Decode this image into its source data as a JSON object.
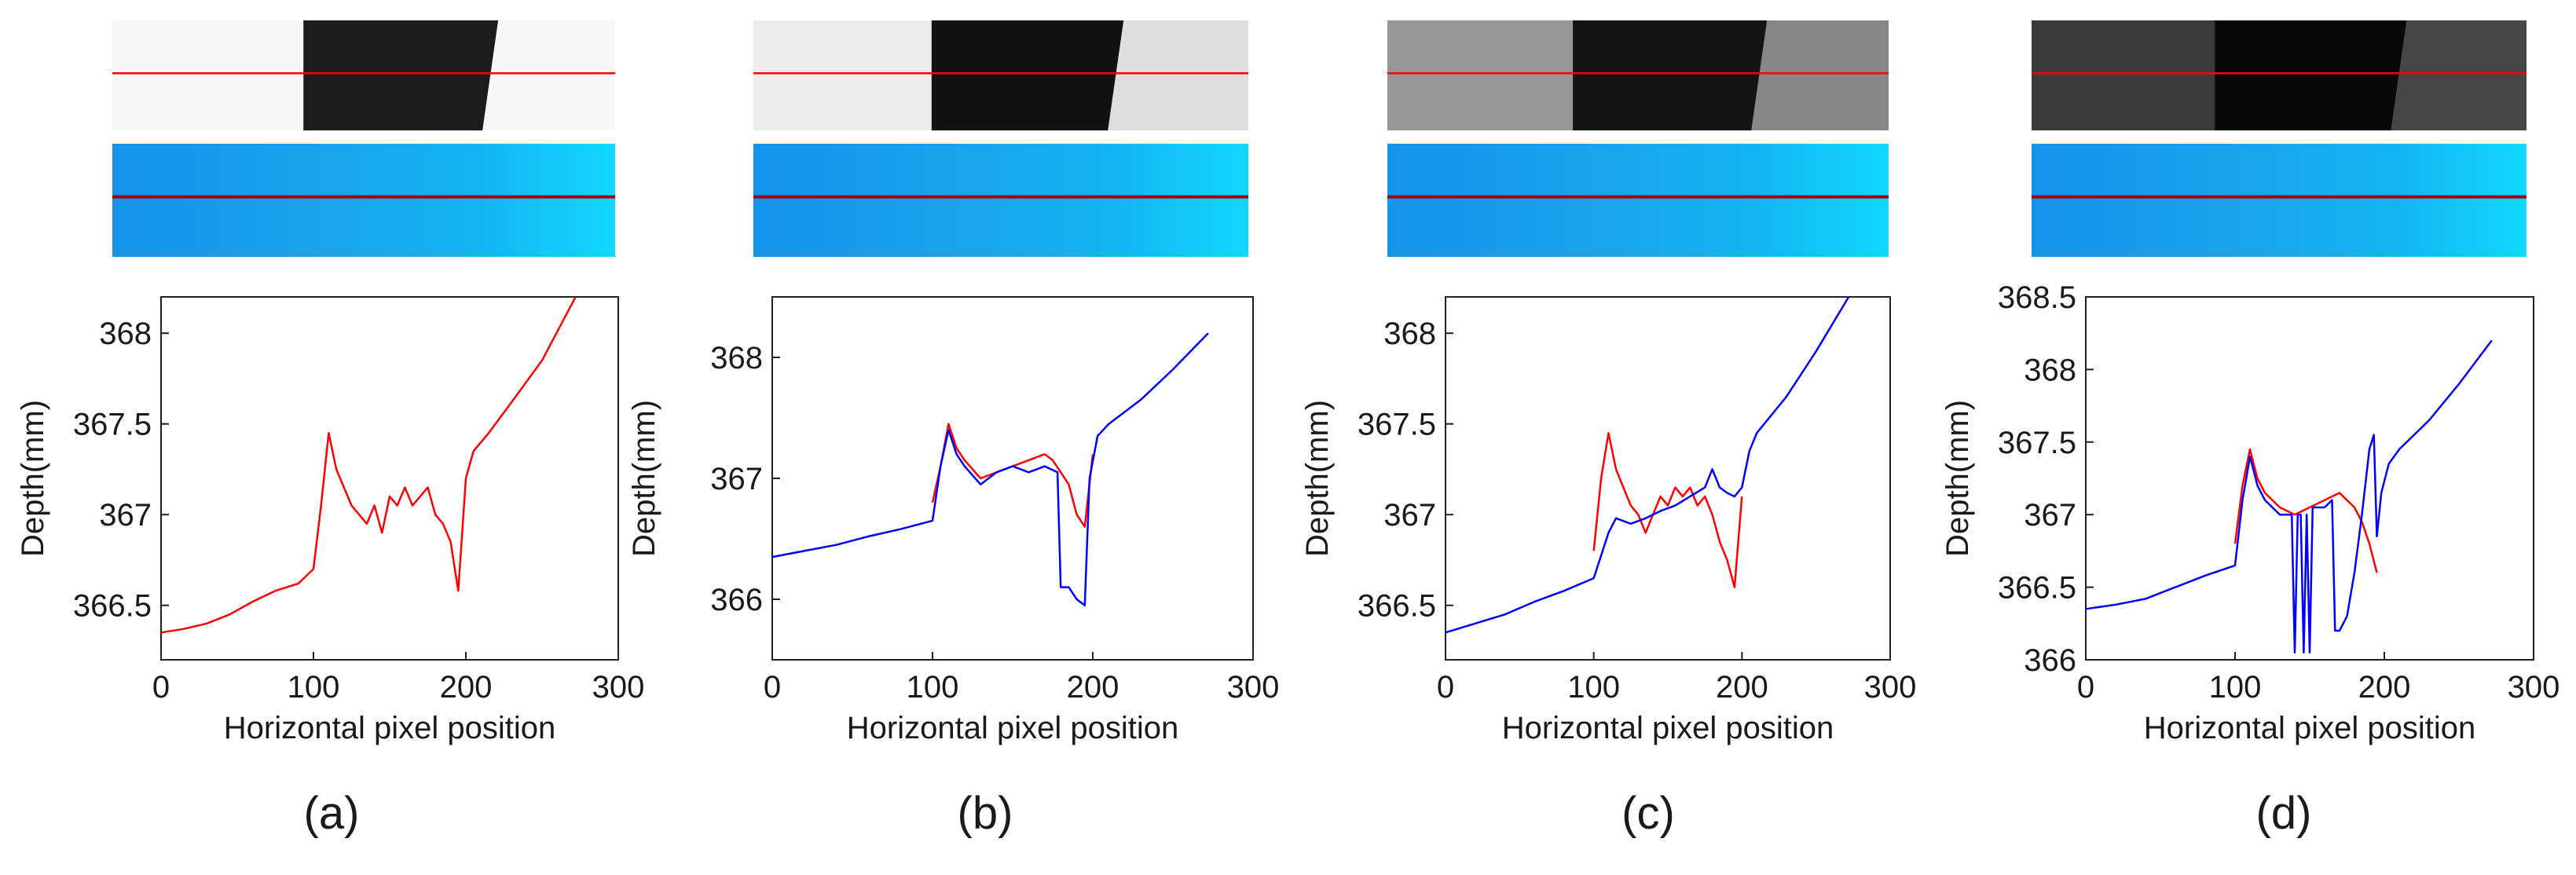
{
  "figure": {
    "colors": {
      "red_series": "#ff0000",
      "blue_series": "#0000ff",
      "marker_line": "#ff0000",
      "depth_marker_line": "#a40000",
      "depth_strip_light": "#12d8ff",
      "depth_strip_dark": "#1493ea"
    }
  },
  "chart_data": [
    {
      "type": "line",
      "panel_label": "(a)",
      "xlabel": "Horizontal pixel position",
      "ylabel": "Depth(mm)",
      "xlim": [
        0,
        300
      ],
      "ylim": [
        366.2,
        368.2
      ],
      "xticks": [
        0,
        100,
        200,
        300
      ],
      "yticks": [
        366.5,
        367,
        367.5,
        368
      ],
      "ytick_labels": [
        "366.5",
        "367",
        "367.5",
        "368"
      ],
      "grid": false,
      "strip_gray": {
        "left": 247,
        "mid": 28,
        "right": 247,
        "mid_start": 0.38,
        "right_start": 0.73
      },
      "series": [
        {
          "color": "#ff0000",
          "x": [
            0,
            15,
            30,
            45,
            60,
            75,
            90,
            100,
            105,
            110,
            115,
            120,
            125,
            130,
            135,
            140,
            145,
            150,
            155,
            160,
            165,
            170,
            175,
            180,
            185,
            190,
            195,
            200,
            205,
            215,
            230,
            250,
            272
          ],
          "y": [
            366.35,
            366.37,
            366.4,
            366.45,
            366.52,
            366.58,
            366.62,
            366.7,
            367.05,
            367.45,
            367.25,
            367.15,
            367.05,
            367.0,
            366.95,
            367.05,
            366.9,
            367.1,
            367.05,
            367.15,
            367.05,
            367.1,
            367.15,
            367.0,
            366.95,
            366.85,
            366.58,
            367.2,
            367.35,
            367.45,
            367.62,
            367.85,
            368.2
          ]
        }
      ]
    },
    {
      "type": "line",
      "panel_label": "(b)",
      "xlabel": "Horizontal pixel position",
      "ylabel": "Depth(mm)",
      "xlim": [
        0,
        300
      ],
      "ylim": [
        365.5,
        368.5
      ],
      "xticks": [
        0,
        100,
        200,
        300
      ],
      "yticks": [
        366,
        367,
        368
      ],
      "ytick_labels": [
        "366",
        "367",
        "368"
      ],
      "grid": false,
      "strip_gray": {
        "left": 236,
        "mid": 18,
        "right": 222,
        "mid_start": 0.36,
        "right_start": 0.71
      },
      "series": [
        {
          "color": "#ff0000",
          "x": [
            100,
            105,
            110,
            115,
            120,
            130,
            140,
            150,
            160,
            170,
            175,
            180,
            185,
            190,
            195,
            200
          ],
          "y": [
            366.8,
            367.1,
            367.45,
            367.25,
            367.15,
            367.0,
            367.05,
            367.1,
            367.15,
            367.2,
            367.15,
            367.05,
            366.95,
            366.7,
            366.6,
            367.2
          ]
        },
        {
          "color": "#0000ff",
          "x": [
            0,
            20,
            40,
            60,
            80,
            100,
            105,
            110,
            115,
            120,
            130,
            140,
            150,
            160,
            170,
            178,
            180,
            185,
            190,
            195,
            198,
            203,
            210,
            230,
            250,
            272
          ],
          "y": [
            366.35,
            366.4,
            366.45,
            366.52,
            366.58,
            366.65,
            367.1,
            367.4,
            367.2,
            367.1,
            366.95,
            367.05,
            367.1,
            367.05,
            367.1,
            367.05,
            366.1,
            366.1,
            366.0,
            365.95,
            367.0,
            367.35,
            367.45,
            367.65,
            367.9,
            368.2
          ]
        }
      ]
    },
    {
      "type": "line",
      "panel_label": "(c)",
      "xlabel": "Horizontal pixel position",
      "ylabel": "Depth(mm)",
      "xlim": [
        0,
        300
      ],
      "ylim": [
        366.2,
        368.2
      ],
      "xticks": [
        0,
        100,
        200,
        300
      ],
      "yticks": [
        366.5,
        367,
        367.5,
        368
      ],
      "ytick_labels": [
        "366.5",
        "367",
        "367.5",
        "368"
      ],
      "grid": false,
      "strip_gray": {
        "left": 150,
        "mid": 20,
        "right": 135,
        "mid_start": 0.37,
        "right_start": 0.72
      },
      "series": [
        {
          "color": "#ff0000",
          "x": [
            100,
            105,
            110,
            115,
            120,
            125,
            130,
            135,
            140,
            145,
            150,
            155,
            160,
            165,
            170,
            175,
            180,
            185,
            190,
            195,
            200
          ],
          "y": [
            366.8,
            367.2,
            367.45,
            367.25,
            367.15,
            367.05,
            367.0,
            366.9,
            367.0,
            367.1,
            367.05,
            367.15,
            367.1,
            367.15,
            367.05,
            367.1,
            367.0,
            366.85,
            366.75,
            366.6,
            367.1
          ]
        },
        {
          "color": "#0000ff",
          "x": [
            0,
            20,
            40,
            60,
            80,
            100,
            110,
            115,
            125,
            135,
            145,
            155,
            165,
            175,
            180,
            185,
            190,
            195,
            200,
            205,
            210,
            230,
            250,
            272
          ],
          "y": [
            366.35,
            366.4,
            366.45,
            366.52,
            366.58,
            366.65,
            366.9,
            366.98,
            366.95,
            366.98,
            367.02,
            367.05,
            367.1,
            367.15,
            367.25,
            367.15,
            367.12,
            367.1,
            367.15,
            367.35,
            367.45,
            367.65,
            367.9,
            368.2
          ]
        }
      ]
    },
    {
      "type": "line",
      "panel_label": "(d)",
      "xlabel": "Horizontal pixel position",
      "ylabel": "Depth(mm)",
      "xlim": [
        0,
        300
      ],
      "ylim": [
        366,
        368.5
      ],
      "xticks": [
        0,
        100,
        200,
        300
      ],
      "yticks": [
        366,
        366.5,
        367,
        367.5,
        368,
        368.5
      ],
      "ytick_labels": [
        "366",
        "366.5",
        "367",
        "367.5",
        "368",
        "368.5"
      ],
      "grid": false,
      "strip_gray": {
        "left": 58,
        "mid": 8,
        "right": 70,
        "mid_start": 0.37,
        "right_start": 0.72
      },
      "series": [
        {
          "color": "#ff0000",
          "x": [
            100,
            105,
            110,
            115,
            120,
            130,
            140,
            150,
            160,
            170,
            180,
            185,
            190,
            195
          ],
          "y": [
            366.8,
            367.2,
            367.45,
            367.25,
            367.15,
            367.05,
            367.0,
            367.05,
            367.1,
            367.15,
            367.05,
            366.95,
            366.8,
            366.6
          ]
        },
        {
          "color": "#0000ff",
          "x": [
            0,
            20,
            40,
            60,
            80,
            100,
            105,
            110,
            115,
            120,
            130,
            138,
            140,
            142,
            144,
            146,
            148,
            150,
            152,
            160,
            165,
            167,
            170,
            175,
            180,
            185,
            190,
            193,
            195,
            198,
            203,
            210,
            230,
            250,
            272
          ],
          "y": [
            366.35,
            366.38,
            366.42,
            366.5,
            366.58,
            366.65,
            367.1,
            367.4,
            367.2,
            367.1,
            367.0,
            367.0,
            366.05,
            367.0,
            367.0,
            366.05,
            367.0,
            366.05,
            367.05,
            367.05,
            367.1,
            366.2,
            366.2,
            366.3,
            366.6,
            367.0,
            367.45,
            367.55,
            366.85,
            367.15,
            367.35,
            367.45,
            367.65,
            367.9,
            368.2
          ]
        }
      ]
    }
  ]
}
